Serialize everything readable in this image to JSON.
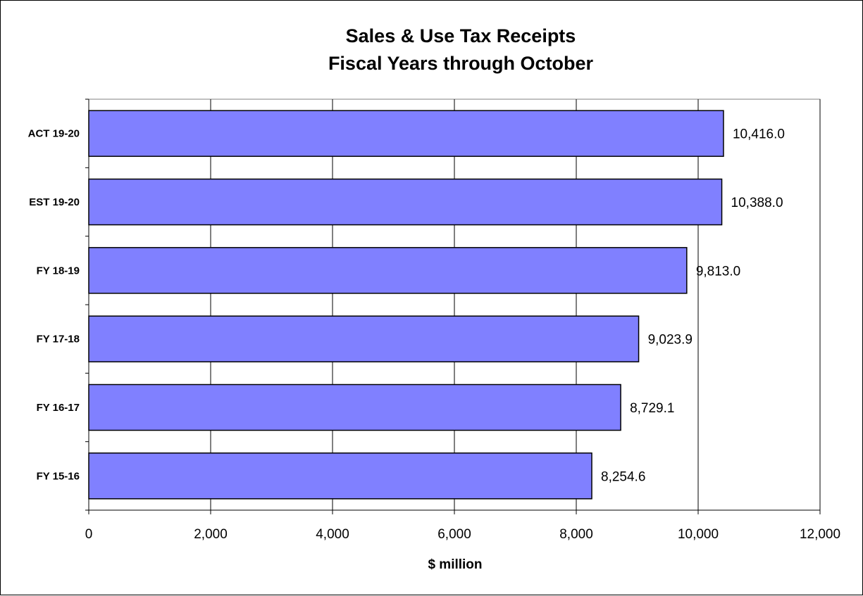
{
  "chart_data": {
    "type": "bar",
    "orientation": "horizontal",
    "title": [
      "Sales & Use Tax Receipts",
      "Fiscal Years through October"
    ],
    "categories": [
      "ACT 19-20",
      "EST 19-20",
      "FY 18-19",
      "FY 17-18",
      "FY 16-17",
      "FY 15-16"
    ],
    "values": [
      10416.0,
      10388.0,
      9813.0,
      9023.9,
      8729.1,
      8254.6
    ],
    "data_labels": [
      "10,416.0",
      "10,388.0",
      "9,813.0",
      "9,023.9",
      "8,729.1",
      "8,254.6"
    ],
    "xlabel": "$ million",
    "xlim": [
      0,
      12000
    ],
    "xticks": [
      0,
      2000,
      4000,
      6000,
      8000,
      10000,
      12000
    ],
    "xtick_labels": [
      "0",
      "2,000",
      "4,000",
      "6,000",
      "8,000",
      "10,000",
      "12,000"
    ],
    "grid": "vertical",
    "legend": "none",
    "bar_color": "#8080ff",
    "bar_edge_color": "#000000"
  }
}
